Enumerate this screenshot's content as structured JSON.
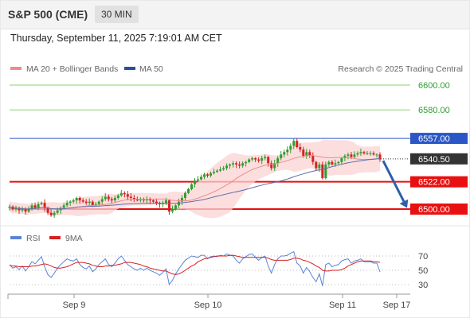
{
  "header": {
    "symbol": "S&P 500 (CME)",
    "timeframe": "30 MIN",
    "datetime": "Thursday, September 11, 2025 7:19:01 AM CET"
  },
  "legend": {
    "ma20": "MA 20 + Bollinger Bands",
    "ma50": "MA 50",
    "credit": "Research © 2025 Trading Central",
    "rsi": "RSI",
    "ma9": "9MA"
  },
  "colors": {
    "up": "#2f9e2f",
    "down": "#d62020",
    "resistance_line": "#2a56c6",
    "target_line": "#8fcf6b",
    "support_line": "#e81010",
    "ma20": "#f08a8a",
    "ma50": "#5b6fa8",
    "bollinger": "#fbd3d3",
    "arrow": "#2e5fa8",
    "rsi": "#5b84d6",
    "rsi_ma": "#d62020"
  },
  "chart_data": [
    {
      "type": "candlestick",
      "ylim": [
        6487,
        6615
      ],
      "x_ticks": [
        "Sep 9",
        "Sep 10",
        "Sep 11",
        "Sep 17"
      ],
      "last_price": 6540.5,
      "levels": [
        {
          "label": "6600.00",
          "value": 6600,
          "kind": "target"
        },
        {
          "label": "6580.00",
          "value": 6580,
          "kind": "target"
        },
        {
          "label": "6557.00",
          "value": 6557,
          "kind": "resistance"
        },
        {
          "label": "6540.50",
          "value": 6540.5,
          "kind": "last"
        },
        {
          "label": "6522.00",
          "value": 6522,
          "kind": "support"
        },
        {
          "label": "6500.00",
          "value": 6500,
          "kind": "support"
        }
      ],
      "forecast_arrow": {
        "from": 6539,
        "to": 6501
      },
      "closes": [
        6502,
        6500,
        6501,
        6499,
        6500,
        6498,
        6500,
        6503,
        6501,
        6504,
        6505,
        6501,
        6497,
        6495,
        6497,
        6499,
        6501,
        6503,
        6505,
        6506,
        6507,
        6509,
        6507,
        6506,
        6505,
        6506,
        6503,
        6504,
        6506,
        6508,
        6510,
        6508,
        6507,
        6509,
        6511,
        6513,
        6512,
        6510,
        6509,
        6508,
        6507,
        6508,
        6507,
        6508,
        6507,
        6506,
        6505,
        6504,
        6505,
        6507,
        6498,
        6500,
        6503,
        6506,
        6509,
        6513,
        6516,
        6520,
        6523,
        6524,
        6526,
        6528,
        6527,
        6529,
        6530,
        6531,
        6532,
        6533,
        6535,
        6536,
        6537,
        6536,
        6535,
        6537,
        6538,
        6540,
        6541,
        6540,
        6539,
        6541,
        6542,
        6537,
        6533,
        6537,
        6541,
        6544,
        6546,
        6548,
        6551,
        6555,
        6550,
        6548,
        6543,
        6546,
        6543,
        6538,
        6533,
        6536,
        6525,
        6536,
        6538,
        6536,
        6537,
        6538,
        6541,
        6543,
        6544,
        6542,
        6544,
        6545,
        6546,
        6545,
        6545,
        6545,
        6544,
        6544,
        6540
      ],
      "rsi": {
        "ylim": [
          20,
          80
        ],
        "ticks": [
          "70",
          "50",
          "30"
        ],
        "values": [
          58,
          53,
          55,
          51,
          56,
          49,
          55,
          62,
          59,
          64,
          69,
          55,
          44,
          40,
          46,
          53,
          58,
          62,
          66,
          64,
          63,
          66,
          58,
          54,
          52,
          56,
          48,
          52,
          58,
          62,
          66,
          58,
          55,
          60,
          66,
          70,
          64,
          58,
          55,
          52,
          50,
          53,
          50,
          53,
          50,
          48,
          46,
          43,
          47,
          52,
          30,
          36,
          45,
          52,
          58,
          64,
          67,
          70,
          69,
          68,
          71,
          71,
          66,
          69,
          70,
          69,
          71,
          70,
          73,
          71,
          70,
          64,
          60,
          66,
          69,
          72,
          73,
          68,
          64,
          68,
          70,
          56,
          46,
          58,
          66,
          70,
          70,
          71,
          74,
          76,
          60,
          56,
          46,
          54,
          48,
          40,
          34,
          45,
          28,
          58,
          60,
          55,
          57,
          58,
          63,
          65,
          66,
          60,
          63,
          64,
          66,
          62,
          62,
          62,
          60,
          60,
          48
        ],
        "ma9": [
          57,
          56,
          56,
          55,
          55,
          55,
          55,
          56,
          56,
          57,
          58,
          59,
          58,
          56,
          54,
          53,
          53,
          54,
          55,
          57,
          59,
          61,
          61,
          61,
          60,
          59,
          57,
          56,
          55,
          55,
          56,
          56,
          57,
          57,
          58,
          59,
          61,
          61,
          61,
          60,
          59,
          58,
          56,
          55,
          53,
          52,
          51,
          50,
          49,
          49,
          47,
          45,
          44,
          45,
          47,
          50,
          53,
          56,
          58,
          62,
          64,
          66,
          67,
          68,
          69,
          70,
          70,
          70,
          70,
          71,
          71,
          70,
          69,
          68,
          68,
          68,
          68,
          68,
          68,
          68,
          68,
          67,
          65,
          64,
          64,
          64,
          64,
          64,
          65,
          67,
          67,
          66,
          64,
          63,
          61,
          59,
          56,
          54,
          50,
          49,
          49,
          50,
          50,
          50,
          51,
          53,
          56,
          58,
          60,
          62,
          63,
          63,
          63,
          63,
          62,
          62,
          61
        ]
      }
    }
  ]
}
